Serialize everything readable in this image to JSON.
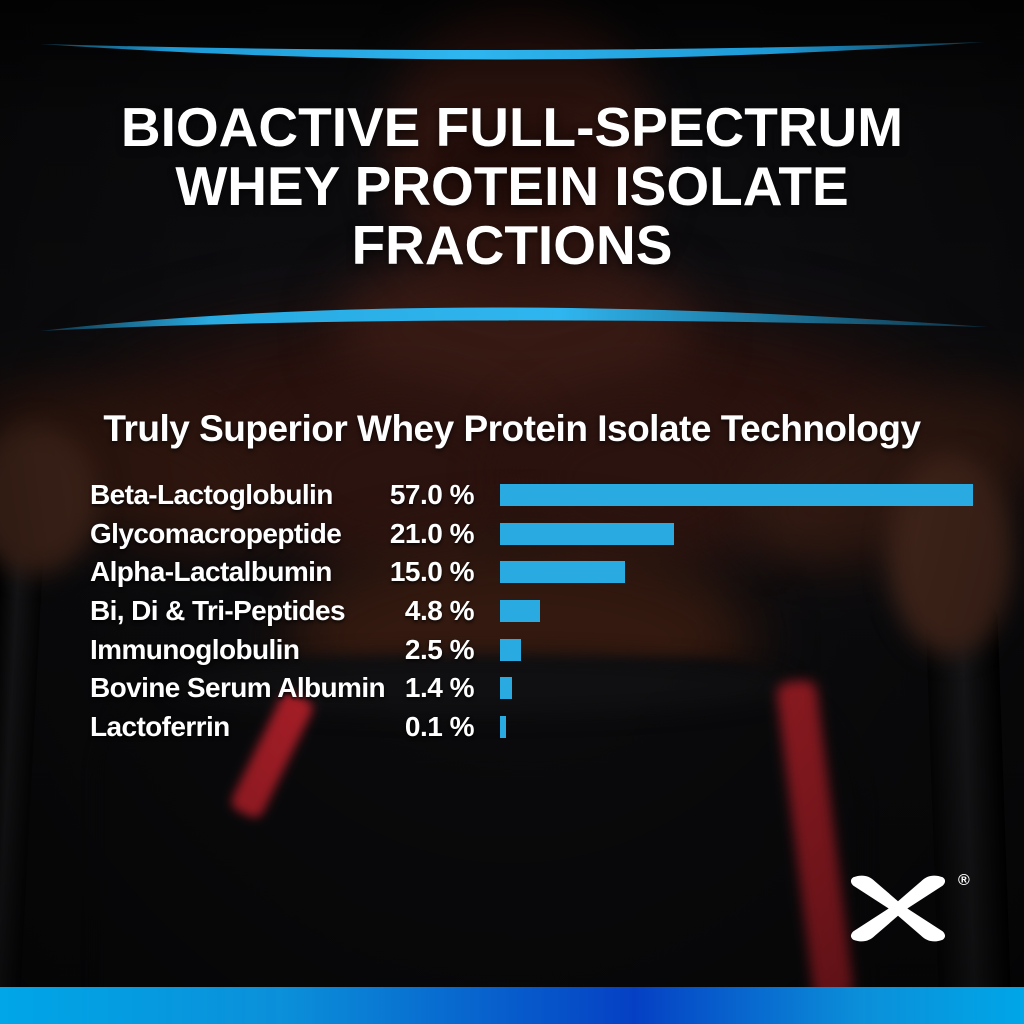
{
  "header": {
    "title_lines": [
      "BIOACTIVE FULL-SPECTRUM",
      "WHEY PROTEIN ISOLATE",
      "FRACTIONS"
    ]
  },
  "subtitle": "Truly Superior Whey Protein Isolate Technology",
  "chart_data": {
    "type": "bar",
    "orientation": "horizontal",
    "title": "Truly Superior Whey Protein Isolate Technology",
    "categories": [
      "Beta-Lactoglobulin",
      "Glycomacropeptide",
      "Alpha-Lactalbumin",
      "Bi, Di & Tri-Peptides",
      "Immunoglobulin",
      "Bovine Serum Albumin",
      "Lactoferrin"
    ],
    "values": [
      57.0,
      21.0,
      15.0,
      4.8,
      2.5,
      1.4,
      0.1
    ],
    "value_labels": [
      "57.0 %",
      "21.0 %",
      "15.0 %",
      "4.8 %",
      "2.5 %",
      "1.4 %",
      "0.1 %"
    ],
    "unit": "%",
    "xlim": [
      0,
      57
    ],
    "grid": false,
    "legend": "none",
    "bar_color": "#29abe2",
    "text_color": "#ffffff"
  },
  "brand": {
    "logo_letter": "X",
    "registered_mark": "®",
    "logo_color": "#ffffff"
  },
  "colors": {
    "accent_blue": "#29abe2",
    "swoosh_blue": "#2fb5ef",
    "bottom_bar_gradient": [
      "#00a6e8",
      "#0540c4",
      "#00a6e8"
    ],
    "background": "#0a0a0c"
  }
}
